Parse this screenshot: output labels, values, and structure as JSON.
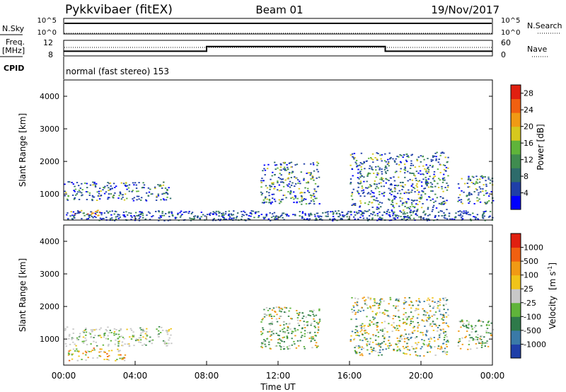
{
  "header": {
    "station": "Pykkvibaer (fitEX)",
    "beam": "Beam 01",
    "date": "19/Nov/2017"
  },
  "status_panels": {
    "nsky_label": "N.Sky",
    "nsky_ticks": [
      "10^5",
      "10^0"
    ],
    "nsearch_label": "N.Search",
    "nsearch_ticks": [
      "10^5",
      "10^0"
    ],
    "freq_label": "Freq.",
    "freq_unit": "[MHz]",
    "freq_ticks": [
      "12",
      "8"
    ],
    "nave_label": "Nave",
    "nave_ticks": [
      "60",
      "0"
    ],
    "cpid_label": "CPID",
    "cpid_text": "normal (fast stereo) 153",
    "freq_series": {
      "x_hours": [
        0,
        8.0,
        8.0,
        18.0,
        18.0,
        24
      ],
      "y_mhz": [
        9.2,
        9.2,
        10.4,
        10.4,
        9.2,
        9.2
      ]
    }
  },
  "chart_data": [
    {
      "type": "heatmap",
      "name": "power-panel",
      "ylabel": "Slant Range [km]",
      "xlabel": "",
      "xlim": [
        0,
        24
      ],
      "ylim": [
        200,
        4500
      ],
      "ytick_labels": [
        "1000",
        "2000",
        "3000",
        "4000"
      ],
      "yticks": [
        1000,
        2000,
        3000,
        4000
      ],
      "colorbar": {
        "label": "Power [dB]",
        "ticks": [
          "4",
          "8",
          "12",
          "16",
          "20",
          "24",
          "28"
        ],
        "tick_values": [
          4,
          8,
          12,
          16,
          20,
          24,
          28
        ],
        "range": [
          0,
          30
        ],
        "colors": [
          "#0000ff",
          "#1f3fa8",
          "#2e6b6b",
          "#3f8c4f",
          "#5fb43a",
          "#d6c81d",
          "#f09a14",
          "#f06010",
          "#e02010"
        ]
      },
      "echo_regions": [
        {
          "t0": 0.0,
          "t1": 6.0,
          "r0": 800,
          "r1": 1400,
          "level": "mixed"
        },
        {
          "t0": 0.2,
          "t1": 2.0,
          "r0": 350,
          "r1": 520,
          "level": "strong"
        },
        {
          "t0": 11.0,
          "t1": 14.3,
          "r0": 700,
          "r1": 2000,
          "level": "mixed"
        },
        {
          "t0": 16.0,
          "t1": 21.5,
          "r0": 500,
          "r1": 2300,
          "level": "mixed"
        },
        {
          "t0": 22.0,
          "t1": 24.0,
          "r0": 700,
          "r1": 1600,
          "level": "mixed"
        },
        {
          "t0": 0.0,
          "t1": 24.0,
          "r0": 200,
          "r1": 500,
          "level": "ground"
        }
      ]
    },
    {
      "type": "heatmap",
      "name": "velocity-panel",
      "ylabel": "Slant Range [km]",
      "xlabel": "Time UT",
      "xlim": [
        0,
        24
      ],
      "ylim": [
        200,
        4500
      ],
      "ytick_labels": [
        "1000",
        "2000",
        "3000",
        "4000"
      ],
      "yticks": [
        1000,
        2000,
        3000,
        4000
      ],
      "xtick_labels": [
        "00:00",
        "04:00",
        "08:00",
        "12:00",
        "16:00",
        "20:00",
        "00:00"
      ],
      "xticks": [
        0,
        4,
        8,
        12,
        16,
        20,
        24
      ],
      "colorbar": {
        "label": "Velocity",
        "unit_base": "[m s",
        "unit_exp": "-1",
        "unit_close": "]",
        "ticks": [
          "1000",
          "500",
          "100",
          "25",
          "-25",
          "-100",
          "-500",
          "-1000"
        ],
        "colors": [
          "#1f3fa8",
          "#3a7aa8",
          "#2e7a4a",
          "#5fb43a",
          "#c8c8c8",
          "#f0c419",
          "#f09a14",
          "#f06010",
          "#e02010"
        ]
      },
      "echo_regions": [
        {
          "t0": 0.0,
          "t1": 6.0,
          "r0": 800,
          "r1": 1400,
          "level": "grey"
        },
        {
          "t0": 0.2,
          "t1": 3.5,
          "r0": 350,
          "r1": 750,
          "level": "orange"
        },
        {
          "t0": 11.0,
          "t1": 14.3,
          "r0": 700,
          "r1": 2000,
          "level": "green"
        },
        {
          "t0": 16.0,
          "t1": 21.5,
          "r0": 500,
          "r1": 2300,
          "level": "mixed"
        },
        {
          "t0": 22.0,
          "t1": 24.0,
          "r0": 700,
          "r1": 1600,
          "level": "green"
        }
      ]
    }
  ]
}
